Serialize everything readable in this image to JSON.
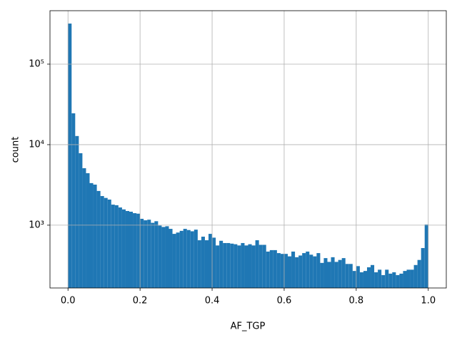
{
  "chart_data": {
    "type": "histogram",
    "xlabel": "AF_TGP",
    "ylabel": "count",
    "color": "#1f77b4",
    "log_y": true,
    "grid": true,
    "bins": [
      0,
      0.01,
      0.02,
      0.03,
      0.04,
      0.05,
      0.06,
      0.07,
      0.08,
      0.09,
      0.1,
      0.11,
      0.12,
      0.13,
      0.14,
      0.15,
      0.16,
      0.17,
      0.18,
      0.19,
      0.2,
      0.21,
      0.22,
      0.23,
      0.24,
      0.25,
      0.26,
      0.27,
      0.28,
      0.29,
      0.3,
      0.31,
      0.32,
      0.33,
      0.34,
      0.35,
      0.36,
      0.37,
      0.38,
      0.39,
      0.4,
      0.41,
      0.42,
      0.43,
      0.44,
      0.45,
      0.46,
      0.47,
      0.48,
      0.49,
      0.5,
      0.51,
      0.52,
      0.53,
      0.54,
      0.55,
      0.56,
      0.57,
      0.58,
      0.59,
      0.6,
      0.61,
      0.62,
      0.63,
      0.64,
      0.65,
      0.66,
      0.67,
      0.68,
      0.69,
      0.7,
      0.71,
      0.72,
      0.73,
      0.74,
      0.75,
      0.76,
      0.77,
      0.78,
      0.79,
      0.8,
      0.81,
      0.82,
      0.83,
      0.84,
      0.85,
      0.86,
      0.87,
      0.88,
      0.89,
      0.9,
      0.91,
      0.92,
      0.93,
      0.94,
      0.95,
      0.96,
      0.97,
      0.98,
      0.99,
      1
    ],
    "values": [
      319000,
      24500,
      12800,
      7830,
      5100,
      4420,
      3330,
      3190,
      2660,
      2300,
      2180,
      2080,
      1800,
      1770,
      1660,
      1570,
      1500,
      1470,
      1410,
      1390,
      1200,
      1150,
      1170,
      1070,
      1120,
      990,
      950,
      970,
      900,
      780,
      810,
      850,
      900,
      870,
      840,
      880,
      650,
      720,
      650,
      780,
      700,
      560,
      640,
      600,
      600,
      590,
      580,
      560,
      600,
      560,
      580,
      560,
      650,
      570,
      570,
      470,
      490,
      490,
      450,
      440,
      440,
      410,
      470,
      400,
      420,
      450,
      470,
      430,
      410,
      450,
      340,
      390,
      350,
      400,
      350,
      370,
      390,
      330,
      330,
      270,
      310,
      260,
      270,
      300,
      320,
      260,
      280,
      240,
      280,
      250,
      260,
      240,
      250,
      270,
      280,
      280,
      320,
      370,
      520,
      1020
    ],
    "xlim": [
      -0.05,
      1.05
    ],
    "ylim": [
      166,
      461000
    ],
    "xticks": [
      {
        "value": 0,
        "label": "0.0"
      },
      0.2,
      0.4,
      0.6,
      0.8,
      {
        "value": 1,
        "label": "1.0"
      }
    ],
    "yticks": [
      {
        "value": 1000,
        "label": "10³"
      },
      {
        "value": 10000,
        "label": "10⁴"
      },
      {
        "value": 100000,
        "label": "10⁵"
      }
    ]
  }
}
